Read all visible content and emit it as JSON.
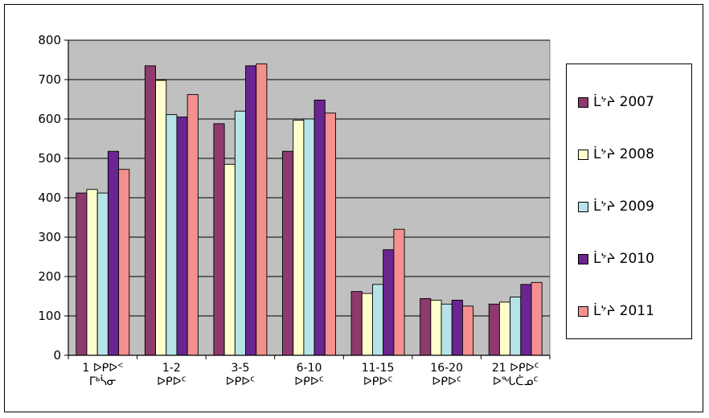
{
  "chart_data": {
    "type": "bar",
    "categories": [
      [
        "1  ᐅᑭᐅᑉ",
        "ᒥᒃᓵᓂ"
      ],
      [
        "1-2",
        "ᐅᑭᐅᑦ"
      ],
      [
        "3-5",
        "ᐅᑭᐅᑦ"
      ],
      [
        "6-10",
        "ᐅᑭᐅᑦ"
      ],
      [
        "11-15",
        "ᐅᑭᐅᑦ"
      ],
      [
        "16-20",
        "ᐅᑭᐅᑦ"
      ],
      [
        "21  ᐅᑭᐅᑦ",
        "ᐅᖓᑖᓄᑦ"
      ]
    ],
    "series": [
      {
        "name": "ᒫᔾᔨ 2007",
        "color": "#8e3a6e",
        "values": [
          412,
          735,
          588,
          518,
          162,
          144,
          130
        ]
      },
      {
        "name": "ᒫᔾᔨ 2008",
        "color": "#ffffcc",
        "values": [
          421,
          698,
          485,
          597,
          157,
          140,
          135
        ]
      },
      {
        "name": "ᒫᔾᔨ 2009",
        "color": "#b6e3e8",
        "values": [
          412,
          611,
          620,
          600,
          180,
          130,
          148
        ]
      },
      {
        "name": "ᒫᔾᔨ 2010",
        "color": "#6a2590",
        "values": [
          518,
          605,
          735,
          648,
          268,
          140,
          180
        ]
      },
      {
        "name": "ᒫᔾᔨ 2011",
        "color": "#f59090",
        "values": [
          472,
          662,
          740,
          615,
          320,
          125,
          185
        ]
      }
    ],
    "yticks": [
      "0",
      "100",
      "200",
      "300",
      "400",
      "500",
      "600",
      "700",
      "800"
    ],
    "ylim": [
      0,
      800
    ],
    "grid": true,
    "plot_background": "#c0c0c0",
    "legend_position": "right"
  }
}
